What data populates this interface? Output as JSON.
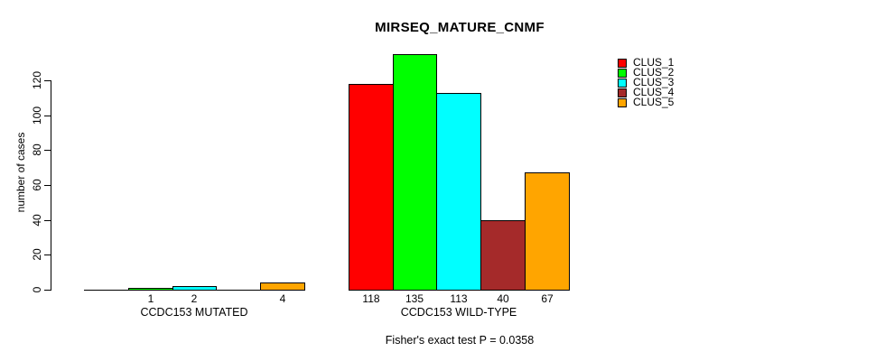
{
  "chart_data": {
    "type": "bar",
    "title": "MIRSEQ_MATURE_CNMF",
    "ylabel": "number of cases",
    "xlabel": "",
    "ylim": [
      0,
      120
    ],
    "yticks": [
      0,
      20,
      40,
      60,
      80,
      100,
      120
    ],
    "grid": false,
    "legend_position": "top-right",
    "categories": [
      "CCDC153 MUTATED",
      "CCDC153 WILD-TYPE"
    ],
    "series": [
      {
        "name": "CLUS_1",
        "color": "#ff0000",
        "values": [
          0,
          118
        ]
      },
      {
        "name": "CLUS_2",
        "color": "#00ff00",
        "values": [
          1,
          135
        ]
      },
      {
        "name": "CLUS_3",
        "color": "#00ffff",
        "values": [
          2,
          113
        ]
      },
      {
        "name": "CLUS_4",
        "color": "#a52a2a",
        "values": [
          0,
          40
        ]
      },
      {
        "name": "CLUS_5",
        "color": "#ffa500",
        "values": [
          4,
          67
        ]
      }
    ],
    "bar_labels": [
      [
        "",
        "1",
        "2",
        "",
        "4"
      ],
      [
        "118",
        "135",
        "113",
        "40",
        "67"
      ]
    ],
    "annotation": "Fisher's exact test P = 0.0358",
    "axis_color": "#000000",
    "background_color": "#ffffff"
  }
}
